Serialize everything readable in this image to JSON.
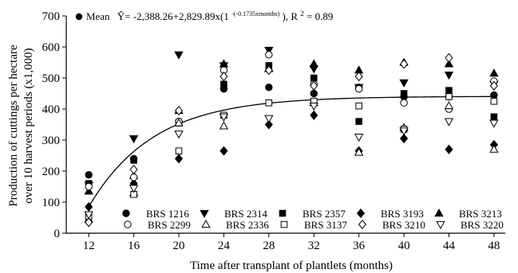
{
  "chart_data": {
    "type": "scatter",
    "title": "",
    "xlabel": "Time after transplant of plantlets (months)",
    "ylabel_line1": "Production of cuttings per hectare",
    "ylabel_line2": "over 10 harvest periods (x1,000)",
    "x": [
      12,
      16,
      20,
      24,
      28,
      32,
      36,
      40,
      44,
      48
    ],
    "xlim": [
      10,
      49
    ],
    "ylim": [
      0,
      700
    ],
    "yticks": [
      0,
      100,
      200,
      300,
      400,
      500,
      600,
      700
    ],
    "grid": false,
    "legend_position": "bottom",
    "regression": {
      "mean_label": "Mean",
      "equation_prefix": "Ŷ= -2,388.26+2,829.89x(1",
      "equation_exponent": "-(-0.1735xmonths)",
      "equation_suffix": "), R",
      "r2_superscript": "2",
      "r2_value": " = 0.89",
      "curve": {
        "asymptote": 441,
        "start": 85,
        "x0": 12,
        "rate": 0.1735
      }
    },
    "series": [
      {
        "name": "BRS 1216",
        "marker": "circle-filled",
        "values": [
          188,
          240,
          360,
          465,
          470,
          450,
          470,
          440,
          440,
          445
        ]
      },
      {
        "name": "BRS 2314",
        "marker": "triangle-down-filled",
        "values": [
          155,
          305,
          575,
          540,
          590,
          530,
          470,
          485,
          510,
          480
        ]
      },
      {
        "name": "BRS 2357",
        "marker": "square-filled",
        "values": [
          160,
          235,
          355,
          480,
          540,
          500,
          360,
          450,
          460,
          375
        ]
      },
      {
        "name": "BRS 3193",
        "marker": "diamond-filled",
        "values": [
          85,
          160,
          240,
          265,
          350,
          380,
          265,
          305,
          270,
          285
        ]
      },
      {
        "name": "BRS 3213",
        "marker": "triangle-up-filled",
        "values": [
          135,
          185,
          395,
          545,
          530,
          545,
          525,
          550,
          545,
          515
        ]
      },
      {
        "name": "BRS 2299",
        "marker": "circle-open",
        "values": [
          150,
          180,
          360,
          525,
          575,
          480,
          465,
          420,
          400,
          490
        ]
      },
      {
        "name": "BRS 2336",
        "marker": "triangle-up-open",
        "values": [
          45,
          130,
          355,
          345,
          530,
          420,
          260,
          340,
          410,
          270
        ]
      },
      {
        "name": "BRS 3137",
        "marker": "square-open",
        "values": [
          55,
          125,
          265,
          380,
          420,
          425,
          410,
          335,
          440,
          425
        ]
      },
      {
        "name": "BRS 3210",
        "marker": "diamond-open",
        "values": [
          35,
          205,
          395,
          505,
          525,
          475,
          505,
          545,
          565,
          475
        ]
      },
      {
        "name": "BRS 3220",
        "marker": "triangle-down-open",
        "values": [
          60,
          145,
          320,
          375,
          370,
          410,
          310,
          330,
          360,
          355
        ]
      }
    ]
  }
}
